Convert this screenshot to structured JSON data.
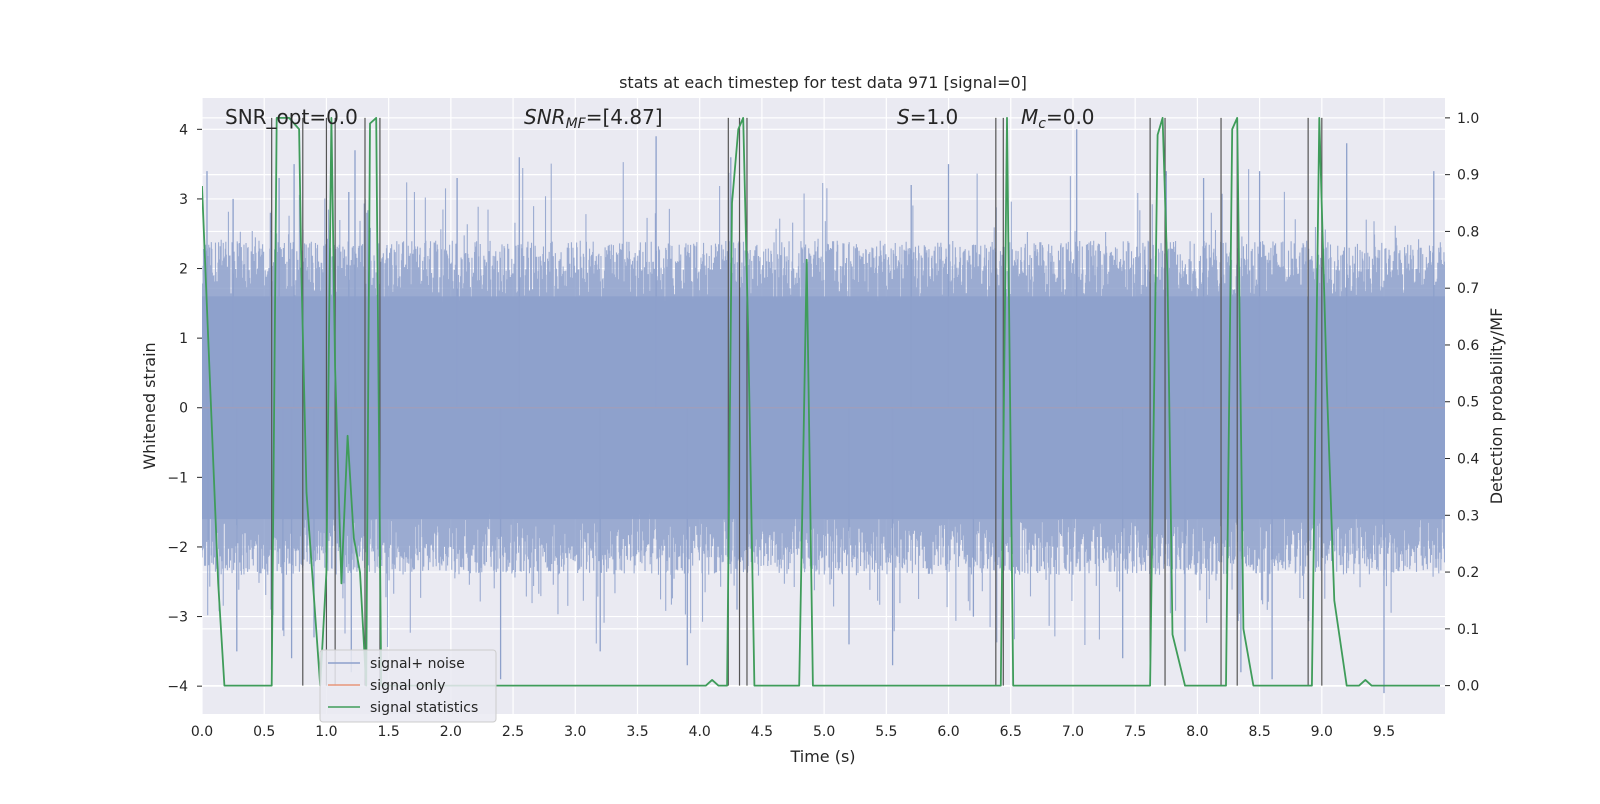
{
  "chart_data": {
    "type": "line",
    "title": "stats at each timestep for test data 971 [signal=0]",
    "xlabel": "Time (s)",
    "ylabel": "Whitened strain",
    "ylabel_right": "Detection probability/MF",
    "xlim": [
      0,
      9.99
    ],
    "ylim": [
      -4.4,
      4.45
    ],
    "ylim_right": [
      -0.05,
      1.035
    ],
    "x_ticks": [
      "0.0",
      "0.5",
      "1.0",
      "1.5",
      "2.0",
      "2.5",
      "3.0",
      "3.5",
      "4.0",
      "4.5",
      "5.0",
      "5.5",
      "6.0",
      "6.5",
      "7.0",
      "7.5",
      "8.0",
      "8.5",
      "9.0",
      "9.5"
    ],
    "y_ticks": [
      "−4",
      "−3",
      "−2",
      "−1",
      "0",
      "1",
      "2",
      "3",
      "4"
    ],
    "y_ticks_right": [
      "0.0",
      "0.1",
      "0.2",
      "0.3",
      "0.4",
      "0.5",
      "0.6",
      "0.7",
      "0.8",
      "0.9",
      "1.0"
    ],
    "annotations": {
      "snr_opt": "SNR_opt=0.0",
      "snr_mf_label": "SNR",
      "snr_mf_sub": "MF",
      "snr_mf_value": "=[4.87]",
      "s_label": "S",
      "s_value": "=1.0",
      "mc_label": "M",
      "mc_sub": "c",
      "mc_value": "=0.0"
    },
    "legend": {
      "placement": "lower-left",
      "entries": [
        "signal+ noise",
        "signal only",
        "signal statistics"
      ]
    },
    "colors": {
      "noise": "#8da0cb",
      "signal_only": "#e8967a",
      "statistics": "#3f9c5a",
      "trigger_lines": "#555555",
      "plot_bg": "#eaeaf2",
      "grid": "#ffffff"
    },
    "series": [
      {
        "name": "signal+ noise",
        "noise_envelope": [
          -1.6,
          1.6
        ],
        "peak_spikes": [
          [
            0.04,
            3.4
          ],
          [
            0.25,
            3.0
          ],
          [
            0.55,
            2.8
          ],
          [
            0.62,
            3.3
          ],
          [
            0.74,
            3.5
          ],
          [
            1.18,
            3.1
          ],
          [
            1.23,
            3.7
          ],
          [
            2.05,
            3.3
          ],
          [
            2.55,
            3.6
          ],
          [
            3.65,
            3.9
          ],
          [
            4.25,
            3.6
          ],
          [
            5.7,
            3.2
          ],
          [
            6.0,
            3.5
          ],
          [
            7.03,
            4.0
          ],
          [
            7.75,
            3.4
          ],
          [
            8.05,
            3.3
          ],
          [
            8.5,
            3.4
          ],
          [
            9.2,
            3.8
          ],
          [
            9.9,
            3.4
          ]
        ],
        "trough_spikes": [
          [
            0.05,
            -1.9
          ],
          [
            0.28,
            -3.5
          ],
          [
            0.65,
            -3.2
          ],
          [
            0.72,
            -3.6
          ],
          [
            0.9,
            -3.3
          ],
          [
            1.2,
            -3.8
          ],
          [
            2.4,
            -3.9
          ],
          [
            3.2,
            -3.5
          ],
          [
            3.9,
            -3.7
          ],
          [
            4.3,
            -2.9
          ],
          [
            5.2,
            -3.4
          ],
          [
            5.55,
            -3.7
          ],
          [
            6.2,
            -3.0
          ],
          [
            7.4,
            -3.6
          ],
          [
            7.9,
            -3.5
          ],
          [
            8.35,
            -3.8
          ],
          [
            8.6,
            -3.9
          ],
          [
            9.5,
            -4.1
          ]
        ]
      },
      {
        "name": "signal only",
        "x": [
          0,
          9.99
        ],
        "y": [
          0,
          0
        ]
      },
      {
        "name": "signal statistics",
        "x": [
          0.0,
          0.13,
          0.18,
          0.5,
          0.56,
          0.6,
          0.63,
          0.7,
          0.78,
          0.8,
          0.84,
          0.95,
          1.0,
          1.04,
          1.07,
          1.12,
          1.17,
          1.22,
          1.27,
          1.32,
          1.35,
          1.4,
          1.44,
          1.48,
          1.53,
          4.05,
          4.1,
          4.15,
          4.22,
          4.26,
          4.31,
          4.35,
          4.39,
          4.44,
          4.74,
          4.8,
          4.86,
          4.91,
          6.42,
          6.47,
          6.52,
          6.57,
          7.62,
          7.68,
          7.72,
          7.76,
          7.8,
          7.9,
          8.18,
          8.23,
          8.28,
          8.32,
          8.37,
          8.45,
          8.87,
          8.92,
          8.98,
          9.04,
          9.1,
          9.2,
          9.3,
          9.35,
          9.4,
          9.95
        ],
        "y": [
          0.88,
          0.18,
          0.0,
          0.0,
          0.0,
          1.0,
          1.0,
          1.0,
          0.98,
          0.72,
          0.34,
          0.0,
          0.2,
          1.0,
          0.56,
          0.18,
          0.44,
          0.26,
          0.2,
          0.0,
          0.99,
          1.0,
          0.0,
          0.0,
          0.0,
          0.0,
          0.01,
          0.0,
          0.0,
          0.85,
          0.98,
          1.0,
          0.62,
          0.0,
          0.0,
          0.0,
          0.75,
          0.0,
          0.0,
          1.0,
          0.0,
          0.0,
          0.0,
          0.97,
          1.0,
          0.72,
          0.09,
          0.0,
          0.0,
          0.0,
          0.98,
          1.0,
          0.1,
          0.0,
          0.0,
          0.0,
          1.0,
          0.53,
          0.15,
          0.0,
          0.0,
          0.01,
          0.0,
          0.0
        ]
      }
    ],
    "trigger_times": [
      0.56,
      0.81,
      1.0,
      1.07,
      1.31,
      1.43,
      4.23,
      4.32,
      4.38,
      6.38,
      6.44,
      7.62,
      7.74,
      8.19,
      8.32,
      8.89,
      9.0
    ]
  }
}
